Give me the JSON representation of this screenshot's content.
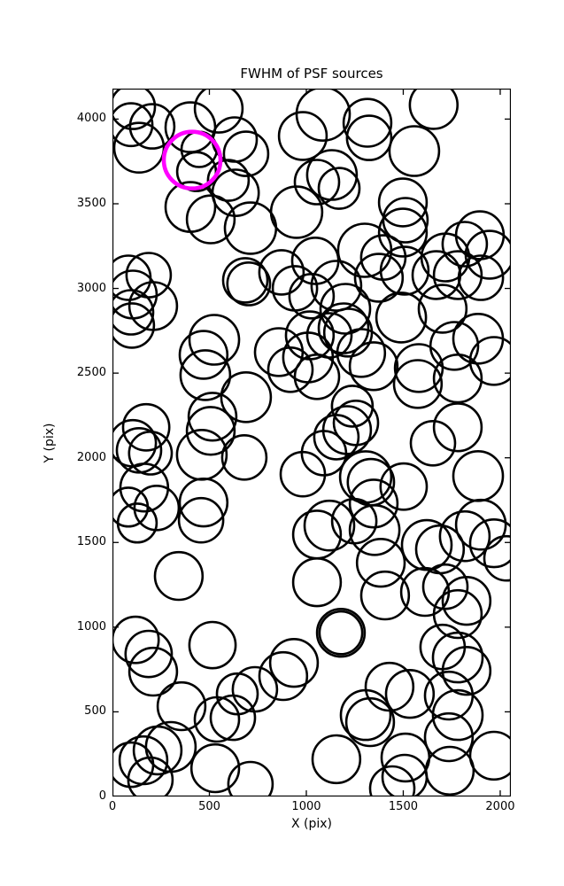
{
  "figure": {
    "title": "FWHM of PSF sources",
    "xlabel": "X (pix)",
    "ylabel": "Y (pix)"
  },
  "chart_data": {
    "type": "scatter",
    "title": "FWHM of PSF sources",
    "xlabel": "X (pix)",
    "ylabel": "Y (pix)",
    "xlim": [
      0,
      2055
    ],
    "ylim": [
      0,
      4180
    ],
    "xticks": [
      0,
      500,
      1000,
      1500,
      2000
    ],
    "yticks": [
      0,
      500,
      1000,
      1500,
      2000,
      2500,
      3000,
      3500,
      4000
    ],
    "grid": false,
    "legend": "none",
    "marker_shape": "open-circle",
    "marker_color": "#000000",
    "marker_linewidth": 2.6,
    "highlight_color": "#ff00ff",
    "highlight_linewidth": 4.6,
    "note": "points are [x, y, radius] with radius in x-axis data units (circle size ~ FWHM)",
    "points": [
      [
        105,
        4072,
        114
      ],
      [
        96,
        3967,
        110
      ],
      [
        205,
        3957,
        114
      ],
      [
        137,
        3831,
        128
      ],
      [
        402,
        3952,
        128
      ],
      [
        548,
        4061,
        123
      ],
      [
        447,
        3821,
        91
      ],
      [
        434,
        3690,
        100
      ],
      [
        630,
        3879,
        114
      ],
      [
        689,
        3795,
        114
      ],
      [
        598,
        3638,
        105
      ],
      [
        635,
        3565,
        119
      ],
      [
        402,
        3481,
        128
      ],
      [
        507,
        3408,
        123
      ],
      [
        712,
        3356,
        132
      ],
      [
        950,
        3450,
        132
      ],
      [
        982,
        3900,
        123
      ],
      [
        1087,
        4030,
        137
      ],
      [
        1315,
        3978,
        123
      ],
      [
        1324,
        3889,
        114
      ],
      [
        1657,
        4083,
        123
      ],
      [
        1557,
        3811,
        128
      ],
      [
        1132,
        3670,
        128
      ],
      [
        1055,
        3628,
        114
      ],
      [
        1169,
        3591,
        105
      ],
      [
        1498,
        3508,
        123
      ],
      [
        1511,
        3403,
        114
      ],
      [
        1498,
        3330,
        123
      ],
      [
        1301,
        3225,
        137
      ],
      [
        1397,
        3183,
        114
      ],
      [
        1507,
        3105,
        123
      ],
      [
        1717,
        3183,
        123
      ],
      [
        1817,
        3262,
        114
      ],
      [
        1895,
        3314,
        123
      ],
      [
        1945,
        3199,
        123
      ],
      [
        1671,
        3079,
        123
      ],
      [
        1781,
        3079,
        123
      ],
      [
        1900,
        3063,
        114
      ],
      [
        1046,
        3163,
        119
      ],
      [
        82,
        3063,
        114
      ],
      [
        187,
        3079,
        114
      ],
      [
        105,
        2964,
        123
      ],
      [
        210,
        2896,
        123
      ],
      [
        96,
        2859,
        114
      ],
      [
        100,
        2781,
        114
      ],
      [
        685,
        3048,
        114
      ],
      [
        703,
        3027,
        110
      ],
      [
        872,
        3095,
        114
      ],
      [
        941,
        3001,
        114
      ],
      [
        1027,
        2954,
        114
      ],
      [
        1155,
        3016,
        128
      ],
      [
        1201,
        2880,
        128
      ],
      [
        1374,
        3063,
        123
      ],
      [
        525,
        2697,
        128
      ],
      [
        470,
        2608,
        123
      ],
      [
        479,
        2488,
        128
      ],
      [
        858,
        2624,
        123
      ],
      [
        918,
        2520,
        114
      ],
      [
        1018,
        2723,
        123
      ],
      [
        1119,
        2723,
        114
      ],
      [
        1192,
        2765,
        128
      ],
      [
        1215,
        2739,
        123
      ],
      [
        1009,
        2593,
        128
      ],
      [
        1055,
        2478,
        114
      ],
      [
        1283,
        2619,
        123
      ],
      [
        1347,
        2541,
        123
      ],
      [
        1489,
        2828,
        128
      ],
      [
        1703,
        2880,
        123
      ],
      [
        1580,
        2530,
        123
      ],
      [
        1575,
        2436,
        123
      ],
      [
        1763,
        2661,
        123
      ],
      [
        1886,
        2703,
        128
      ],
      [
        1968,
        2572,
        123
      ],
      [
        1781,
        2468,
        123
      ],
      [
        689,
        2358,
        128
      ],
      [
        516,
        2243,
        123
      ],
      [
        507,
        2159,
        123
      ],
      [
        1237,
        2305,
        105
      ],
      [
        1256,
        2206,
        114
      ],
      [
        1210,
        2164,
        123
      ],
      [
        1155,
        2122,
        114
      ],
      [
        1091,
        2028,
        114
      ],
      [
        1781,
        2180,
        123
      ],
      [
        1653,
        2086,
        114
      ],
      [
        174,
        2180,
        119
      ],
      [
        105,
        2086,
        119
      ],
      [
        137,
        2044,
        114
      ],
      [
        196,
        2028,
        110
      ],
      [
        461,
        2018,
        128
      ],
      [
        680,
        2002,
        114
      ],
      [
        164,
        1824,
        123
      ],
      [
        82,
        1709,
        100
      ],
      [
        228,
        1704,
        114
      ],
      [
        470,
        1736,
        123
      ],
      [
        457,
        1631,
        114
      ],
      [
        128,
        1615,
        100
      ],
      [
        342,
        1302,
        123
      ],
      [
        982,
        1903,
        114
      ],
      [
        1306,
        1887,
        132
      ],
      [
        1333,
        1856,
        119
      ],
      [
        1347,
        1730,
        123
      ],
      [
        1502,
        1830,
        119
      ],
      [
        1886,
        1892,
        128
      ],
      [
        1119,
        1600,
        128
      ],
      [
        1055,
        1547,
        123
      ],
      [
        1247,
        1626,
        114
      ],
      [
        1352,
        1573,
        128
      ],
      [
        1384,
        1380,
        123
      ],
      [
        1621,
        1485,
        128
      ],
      [
        1689,
        1459,
        123
      ],
      [
        1817,
        1537,
        128
      ],
      [
        1900,
        1605,
        128
      ],
      [
        1968,
        1495,
        123
      ],
      [
        2032,
        1406,
        114
      ],
      [
        1055,
        1265,
        123
      ],
      [
        1406,
        1187,
        123
      ],
      [
        1612,
        1208,
        123
      ],
      [
        1717,
        1239,
        114
      ],
      [
        1826,
        1155,
        123
      ],
      [
        1781,
        1077,
        123
      ],
      [
        1178,
        967,
        123
      ],
      [
        1178,
        967,
        110
      ],
      [
        1703,
        883,
        114
      ],
      [
        1781,
        821,
        128
      ],
      [
        1826,
        742,
        123
      ],
      [
        119,
        925,
        119
      ],
      [
        187,
        842,
        119
      ],
      [
        210,
        737,
        123
      ],
      [
        516,
        894,
        119
      ],
      [
        881,
        711,
        123
      ],
      [
        936,
        789,
        123
      ],
      [
        735,
        633,
        114
      ],
      [
        644,
        606,
        105
      ],
      [
        356,
        533,
        123
      ],
      [
        539,
        455,
        114
      ],
      [
        621,
        465,
        114
      ],
      [
        1429,
        648,
        123
      ],
      [
        1534,
        606,
        123
      ],
      [
        1306,
        481,
        128
      ],
      [
        1329,
        439,
        123
      ],
      [
        1735,
        596,
        123
      ],
      [
        1781,
        481,
        128
      ],
      [
        1735,
        350,
        123
      ],
      [
        233,
        272,
        123
      ],
      [
        301,
        293,
        128
      ],
      [
        160,
        214,
        123
      ],
      [
        96,
        188,
        114
      ],
      [
        196,
        99,
        114
      ],
      [
        530,
        167,
        123
      ],
      [
        712,
        73,
        114
      ],
      [
        1155,
        220,
        123
      ],
      [
        1511,
        230,
        123
      ],
      [
        1507,
        115,
        114
      ],
      [
        1740,
        152,
        123
      ],
      [
        1968,
        241,
        123
      ],
      [
        1443,
        47,
        114
      ]
    ],
    "highlight_point": {
      "x": 411,
      "y": 3758,
      "r": 146
    }
  }
}
